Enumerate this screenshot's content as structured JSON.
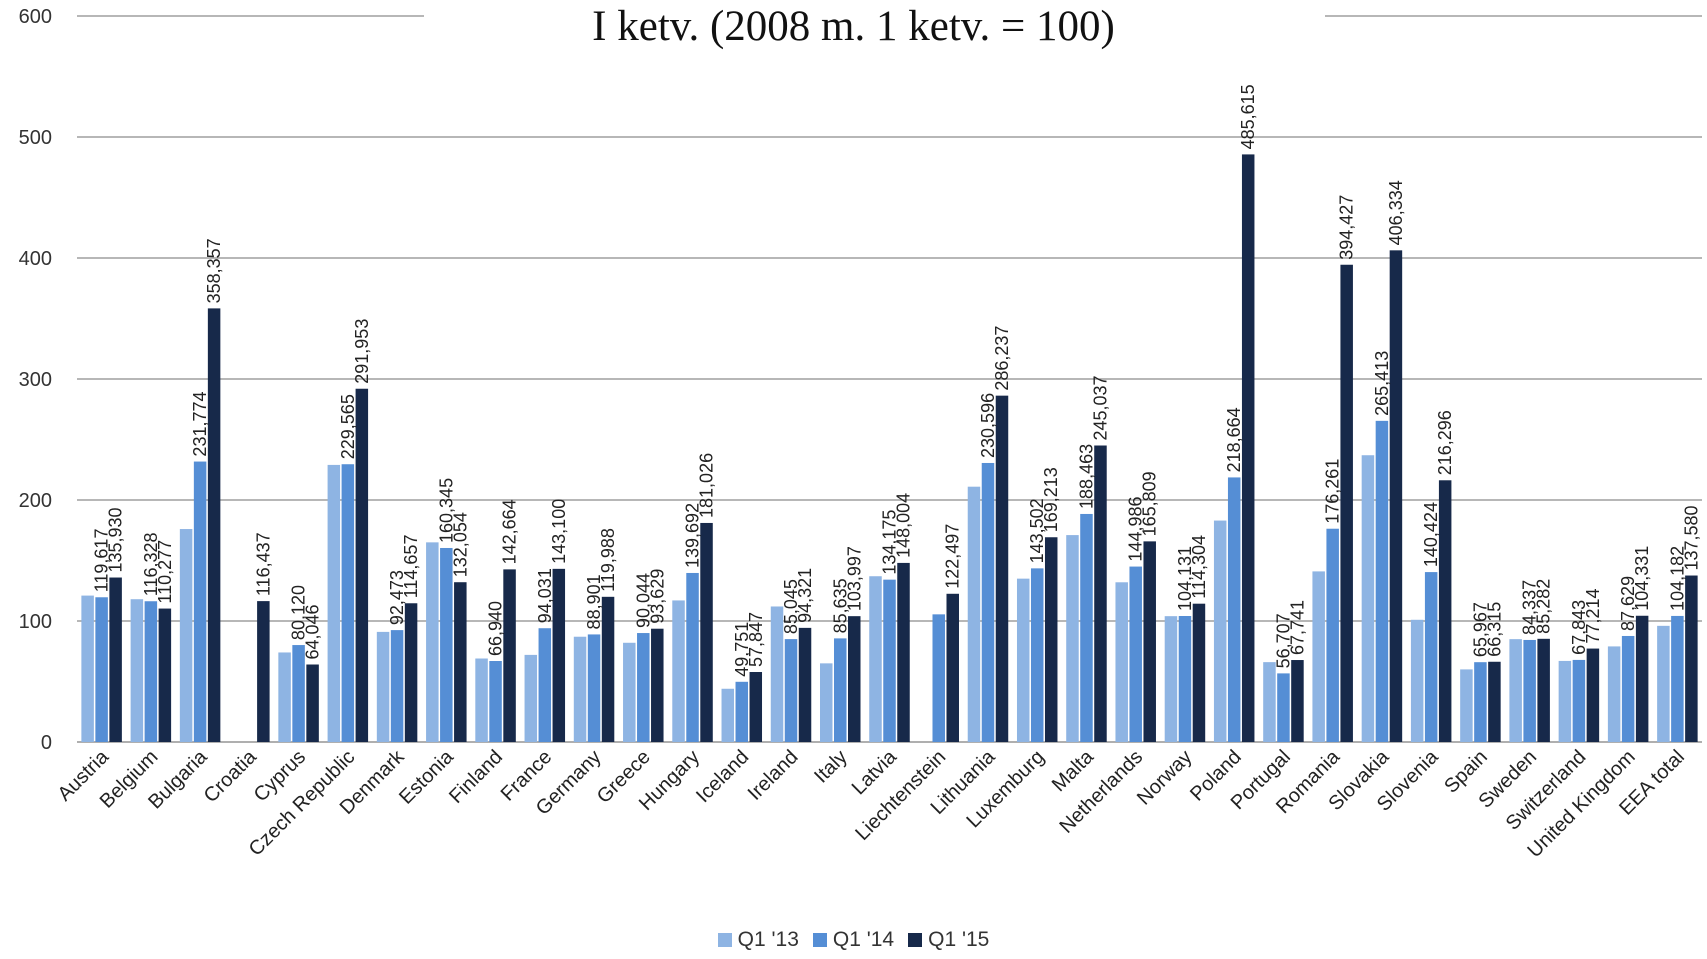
{
  "chart_data": {
    "type": "bar",
    "title": "I ketv. (2008 m. 1 ketv. = 100)",
    "xlabel": "",
    "ylabel": "",
    "ylim": [
      0,
      600
    ],
    "yticks": [
      "0",
      "100",
      "200",
      "300",
      "400",
      "500",
      "600"
    ],
    "grid": true,
    "legend_position": "bottom",
    "categories": [
      "Austria",
      "Belgium",
      "Bulgaria",
      "Croatia",
      "Cyprus",
      "Czech Republic",
      "Denmark",
      "Estonia",
      "Finland",
      "France",
      "Germany",
      "Greece",
      "Hungary",
      "Iceland",
      "Ireland",
      "Italy",
      "Latvia",
      "Liechtenstein",
      "Lithuania",
      "Luxemburg",
      "Malta",
      "Netherlands",
      "Norway",
      "Poland",
      "Portugal",
      "Romania",
      "Slovakia",
      "Slovenia",
      "Spain",
      "Sweden",
      "Switzerland",
      "United Kingdom",
      "EEA total"
    ],
    "series": [
      {
        "name": "Q1 '13",
        "color": "#8eb4e3",
        "values": [
          121,
          118,
          176,
          null,
          74,
          229,
          91,
          165,
          69,
          72,
          87,
          82,
          117,
          44,
          112,
          65,
          137,
          null,
          211,
          135,
          171,
          132,
          104,
          183,
          66,
          141,
          237,
          101,
          60,
          85,
          67,
          79,
          96
        ],
        "labels": [
          "",
          "",
          "",
          "",
          "",
          "",
          "",
          "",
          "",
          "",
          "",
          "",
          "",
          "",
          "",
          "",
          "",
          "",
          "",
          "",
          "",
          "",
          "",
          "",
          "",
          "",
          "",
          "",
          "",
          "",
          "",
          "",
          ""
        ]
      },
      {
        "name": "Q1 '14",
        "color": "#558ed5",
        "values": [
          119.617,
          116.328,
          231.774,
          null,
          80.12,
          229.565,
          92.473,
          160.345,
          66.94,
          94.031,
          88.901,
          90.044,
          139.692,
          49.751,
          85.045,
          85.635,
          134.175,
          105.5,
          230.596,
          143.502,
          188.463,
          144.986,
          104.131,
          218.664,
          56.707,
          176.261,
          265.413,
          140.424,
          65.967,
          84.337,
          67.843,
          87.629,
          104.182
        ],
        "labels": [
          "119,617",
          "116,328",
          "231,774",
          "",
          "80,120",
          "229,565",
          "92,473",
          "160,345",
          "66,940",
          "94,031",
          "88,901",
          "90,044",
          "139,692",
          "49,751",
          "85,045",
          "85,635",
          "134,175",
          "",
          "230,596",
          "143,502",
          "188,463",
          "144,986",
          "104,131",
          "218,664",
          "56,707",
          "176,261",
          "265,413",
          "140,424",
          "65,967",
          "84,337",
          "67,843",
          "87,629",
          "104,182"
        ]
      },
      {
        "name": "Q1 '15",
        "color": "#17294a",
        "values": [
          135.93,
          110.277,
          358.357,
          116.437,
          64.046,
          291.953,
          114.657,
          132.054,
          142.664,
          143.1,
          119.988,
          93.629,
          181.026,
          57.847,
          94.321,
          103.997,
          148.004,
          122.497,
          286.237,
          169.213,
          245.037,
          165.809,
          114.304,
          485.615,
          67.741,
          394.427,
          406.334,
          216.296,
          66.315,
          85.282,
          77.214,
          104.331,
          137.58
        ],
        "labels": [
          "135,930",
          "110,277",
          "358,357",
          "116,437",
          "64,046",
          "291,953",
          "114,657",
          "132,054",
          "142,664",
          "143,100",
          "119,988",
          "93,629",
          "181,026",
          "57,847",
          "94,321",
          "103,997",
          "148,004",
          "122,497",
          "286,237",
          "169,213",
          "245,037",
          "165,809",
          "114,304",
          "485,615",
          "67,741",
          "394,427",
          "406,334",
          "216,296",
          "66,315",
          "85,282",
          "77,214",
          "104,331",
          "137,580"
        ]
      }
    ]
  }
}
